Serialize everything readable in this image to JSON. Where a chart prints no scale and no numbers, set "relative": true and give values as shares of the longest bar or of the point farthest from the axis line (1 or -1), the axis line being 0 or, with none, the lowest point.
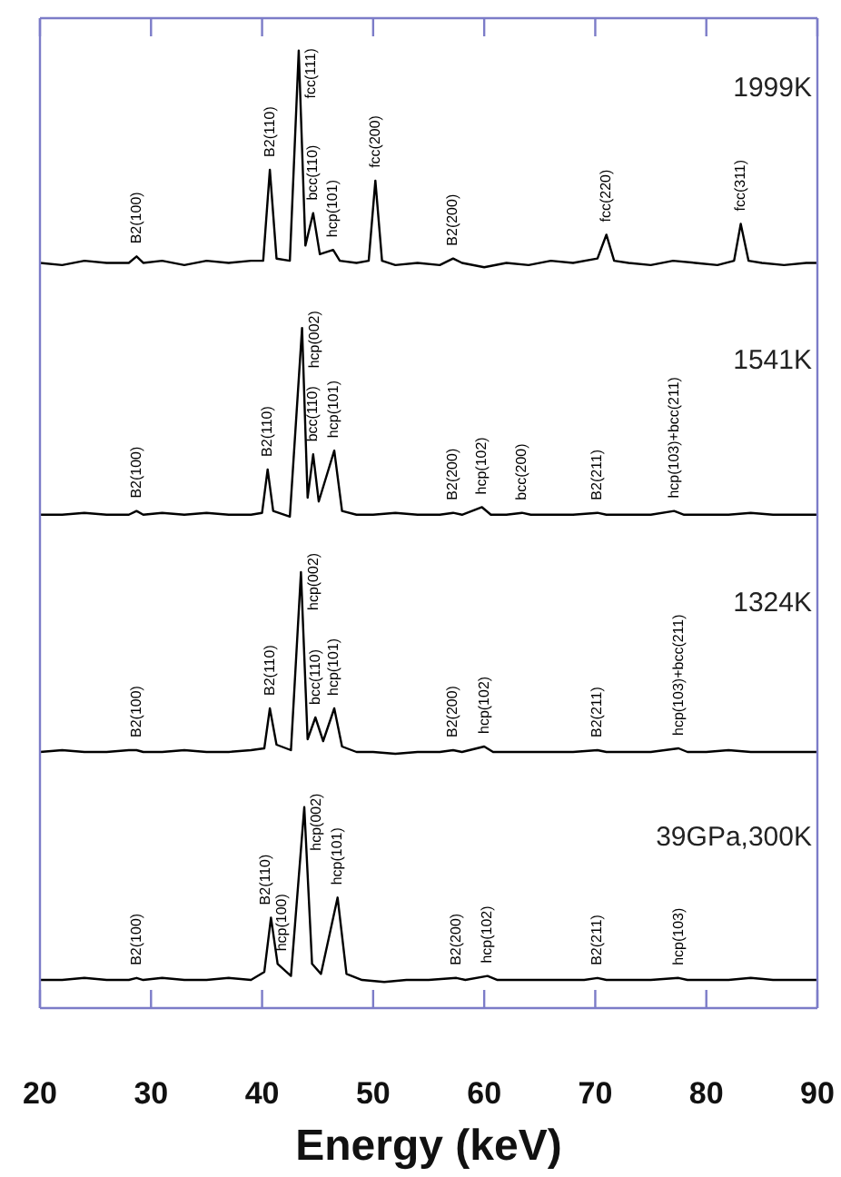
{
  "chart_data": [
    {
      "type": "line",
      "relative": true,
      "xlim": [
        20,
        90
      ],
      "xticks": [
        20,
        30,
        40,
        50,
        60,
        70,
        80,
        90
      ],
      "tick_labels": false,
      "legend": false,
      "marker": "none",
      "x": [
        20,
        22,
        24,
        26,
        28,
        28.7,
        29.3,
        31,
        33,
        35,
        37,
        39,
        40.1,
        40.7,
        41.3,
        42.5,
        43.3,
        43.9,
        44.6,
        45.2,
        46.4,
        47,
        48.5,
        49.6,
        50.2,
        50.8,
        52,
        54,
        56,
        57.2,
        58,
        60,
        62,
        64,
        66,
        68,
        70.2,
        71,
        71.7,
        73,
        75,
        77,
        79,
        81,
        82.5,
        83.1,
        83.8,
        85,
        87,
        89,
        90
      ],
      "series": [
        {
          "color": "#000000",
          "values": [
            0.02,
            0.01,
            0.03,
            0.02,
            0.02,
            0.05,
            0.02,
            0.03,
            0.01,
            0.03,
            0.02,
            0.03,
            0.03,
            0.45,
            0.04,
            0.03,
            1,
            0.1,
            0.25,
            0.06,
            0.08,
            0.03,
            0.02,
            0.03,
            0.4,
            0.03,
            0.01,
            0.02,
            0.01,
            0.04,
            0.02,
            0,
            0.02,
            0.01,
            0.03,
            0.02,
            0.04,
            0.15,
            0.03,
            0.02,
            0.01,
            0.03,
            0.02,
            0.01,
            0.03,
            0.2,
            0.03,
            0.02,
            0.01,
            0.02,
            0.02
          ]
        }
      ],
      "annotations": [
        "1999K",
        {
          "text": "B2(100)",
          "x": 28.7,
          "y": 0.05
        },
        {
          "text": "B2(110)",
          "x": 40.7,
          "y": 0.45
        },
        {
          "text": "fcc(111)",
          "x": 43.3,
          "y": 1
        },
        {
          "text": "bcc(110)",
          "x": 44.6,
          "y": 0.25
        },
        {
          "text": "hcp(101)",
          "x": 46.4,
          "y": 0.08
        },
        {
          "text": "fcc(200)",
          "x": 50.2,
          "y": 0.4
        },
        {
          "text": "B2(200)",
          "x": 57.2,
          "y": 0.04
        },
        {
          "text": "fcc(220)",
          "x": 71,
          "y": 0.15
        },
        {
          "text": "fcc(311)",
          "x": 83.1,
          "y": 0.2
        }
      ]
    },
    {
      "type": "line",
      "relative": true,
      "xlim": [
        20,
        90
      ],
      "tick_labels": false,
      "legend": false,
      "marker": "none",
      "x": [
        20,
        22,
        24,
        26,
        28,
        28.7,
        29.3,
        31,
        33,
        35,
        37,
        39,
        40,
        40.5,
        41,
        42.5,
        43.6,
        44.1,
        44.6,
        45.1,
        46.5,
        47.2,
        48.5,
        50,
        52,
        54,
        56,
        57.2,
        58,
        59.8,
        60.6,
        62,
        63.4,
        64.2,
        66,
        68,
        70.2,
        71,
        73,
        75,
        77.1,
        78,
        80,
        82,
        84,
        86,
        88,
        90
      ],
      "series": [
        {
          "color": "#000000",
          "values": [
            0.01,
            0.01,
            0.02,
            0.01,
            0.01,
            0.03,
            0.01,
            0.02,
            0.01,
            0.02,
            0.01,
            0.01,
            0.02,
            0.25,
            0.03,
            0,
            1,
            0.1,
            0.33,
            0.08,
            0.35,
            0.03,
            0.01,
            0.01,
            0.02,
            0.01,
            0.01,
            0.02,
            0.01,
            0.05,
            0.01,
            0.01,
            0.02,
            0.01,
            0.01,
            0.01,
            0.02,
            0.01,
            0.01,
            0.01,
            0.03,
            0.01,
            0.01,
            0.01,
            0.02,
            0.01,
            0.01,
            0.01
          ]
        }
      ],
      "annotations": [
        "1541K",
        {
          "text": "B2(100)",
          "x": 28.7,
          "y": 0.03
        },
        {
          "text": "B2(110)",
          "x": 40.5,
          "y": 0.25
        },
        {
          "text": "hcp(002)",
          "x": 43.6,
          "y": 1
        },
        {
          "text": "bcc(110)",
          "x": 44.6,
          "y": 0.33
        },
        {
          "text": "hcp(101)",
          "x": 46.5,
          "y": 0.35
        },
        {
          "text": "B2(200)",
          "x": 57.2,
          "y": 0.02
        },
        {
          "text": "hcp(102)",
          "x": 59.8,
          "y": 0.05
        },
        {
          "text": "bcc(200)",
          "x": 63.4,
          "y": 0.02
        },
        {
          "text": "B2(211)",
          "x": 70.2,
          "y": 0.02
        },
        {
          "text": "hcp(103)+bcc(211)",
          "x": 77.1,
          "y": 0.03
        }
      ]
    },
    {
      "type": "line",
      "relative": true,
      "xlim": [
        20,
        90
      ],
      "tick_labels": false,
      "legend": false,
      "marker": "none",
      "x": [
        20,
        22,
        24,
        26,
        28,
        28.7,
        29.3,
        31,
        33,
        35,
        37,
        39,
        40.2,
        40.7,
        41.3,
        42.6,
        43.5,
        44.1,
        44.8,
        45.5,
        46.5,
        47.2,
        48.5,
        50,
        52,
        54,
        56,
        57.2,
        58,
        60,
        60.8,
        62,
        64,
        66,
        68,
        70.2,
        71,
        73,
        75,
        77.5,
        78.3,
        80,
        82,
        84,
        86,
        88,
        90
      ],
      "series": [
        {
          "color": "#000000",
          "values": [
            0.01,
            0.02,
            0.01,
            0.01,
            0.02,
            0.02,
            0.01,
            0.01,
            0.02,
            0.01,
            0.01,
            0.02,
            0.03,
            0.25,
            0.05,
            0.02,
            1,
            0.08,
            0.2,
            0.07,
            0.25,
            0.04,
            0.01,
            0.01,
            0,
            0.01,
            0.01,
            0.02,
            0.01,
            0.04,
            0.01,
            0.01,
            0.01,
            0.01,
            0.01,
            0.02,
            0.01,
            0.01,
            0.01,
            0.03,
            0.01,
            0.01,
            0.02,
            0.01,
            0.01,
            0.01,
            0.01
          ]
        }
      ],
      "annotations": [
        "1324K",
        {
          "text": "B2(100)",
          "x": 28.7,
          "y": 0.02
        },
        {
          "text": "B2(110)",
          "x": 40.7,
          "y": 0.25
        },
        {
          "text": "hcp(002)",
          "x": 43.5,
          "y": 1
        },
        {
          "text": "bcc(110)",
          "x": 44.8,
          "y": 0.2
        },
        {
          "text": "hcp(101)",
          "x": 46.5,
          "y": 0.25
        },
        {
          "text": "B2(200)",
          "x": 57.2,
          "y": 0.02
        },
        {
          "text": "hcp(102)",
          "x": 60,
          "y": 0.04
        },
        {
          "text": "B2(211)",
          "x": 70.2,
          "y": 0.02
        },
        {
          "text": "hcp(103)+bcc(211)",
          "x": 77.5,
          "y": 0.03
        }
      ]
    },
    {
      "type": "line",
      "relative": true,
      "xlim": [
        20,
        90
      ],
      "xticks": [
        20,
        30,
        40,
        50,
        60,
        70,
        80,
        90
      ],
      "tick_labels": "x",
      "xlabel": "Energy (keV)",
      "legend": false,
      "marker": "none",
      "x": [
        20,
        22,
        24,
        26,
        28,
        28.7,
        29.3,
        31,
        33,
        35,
        37,
        39,
        40.2,
        40.8,
        41.4,
        42.6,
        43.8,
        44.5,
        45.3,
        46.8,
        47.6,
        49,
        51,
        53,
        55,
        57.5,
        58.3,
        60.3,
        61.2,
        63,
        65,
        67,
        69,
        70.2,
        71,
        73,
        75,
        77.5,
        78.3,
        80,
        82,
        84,
        86,
        88,
        90
      ],
      "series": [
        {
          "color": "#000000",
          "values": [
            0.14,
            0.14,
            0.15,
            0.14,
            0.14,
            0.15,
            0.14,
            0.15,
            0.14,
            0.14,
            0.15,
            0.14,
            0.18,
            0.45,
            0.22,
            0.16,
            1,
            0.22,
            0.17,
            0.55,
            0.17,
            0.14,
            0.13,
            0.14,
            0.14,
            0.15,
            0.14,
            0.16,
            0.14,
            0.14,
            0.14,
            0.14,
            0.14,
            0.15,
            0.14,
            0.14,
            0.14,
            0.15,
            0.14,
            0.14,
            0.14,
            0.15,
            0.14,
            0.14,
            0.14
          ]
        }
      ],
      "annotations": [
        "39GPa,300K",
        {
          "text": "B2(100)",
          "x": 28.7,
          "y": 0.15
        },
        {
          "text": "B2(110)",
          "x": 40.8,
          "y": 0.45
        },
        {
          "text": "hcp(100)",
          "x": 41.4,
          "y": 0.22
        },
        {
          "text": "hcp(002)",
          "x": 43.8,
          "y": 1
        },
        {
          "text": "hcp(101)",
          "x": 46.8,
          "y": 0.55
        },
        {
          "text": "B2(200)",
          "x": 57.5,
          "y": 0.15
        },
        {
          "text": "hcp(102)",
          "x": 60.3,
          "y": 0.16
        },
        {
          "text": "B2(211)",
          "x": 70.2,
          "y": 0.15
        },
        {
          "text": "hcp(103)",
          "x": 77.5,
          "y": 0.15
        }
      ]
    }
  ]
}
